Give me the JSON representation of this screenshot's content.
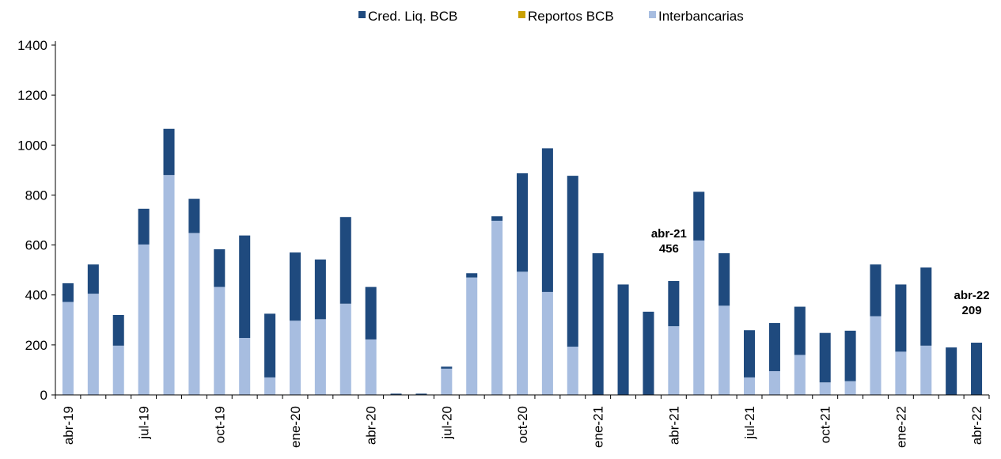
{
  "chart_data": {
    "type": "stacked_bar",
    "categories": [
      "abr-19",
      null,
      null,
      "jul-19",
      null,
      null,
      "oct-19",
      null,
      null,
      "ene-20",
      null,
      null,
      "abr-20",
      null,
      null,
      "jul-20",
      null,
      null,
      "oct-20",
      null,
      null,
      "ene-21",
      null,
      null,
      "abr-21",
      null,
      null,
      "jul-21",
      null,
      null,
      "oct-21",
      null,
      null,
      "ene-22",
      null,
      null,
      "abr-22"
    ],
    "series": [
      {
        "name": "Interbancarias",
        "color": "#a7bde0",
        "values": [
          372,
          405,
          197,
          602,
          880,
          648,
          432,
          228,
          70,
          297,
          303,
          365,
          222,
          0,
          0,
          105,
          470,
          697,
          493,
          412,
          193,
          0,
          0,
          0,
          275,
          618,
          357,
          70,
          95,
          160,
          50,
          55,
          315,
          173,
          197,
          0,
          0
        ]
      },
      {
        "name": "Reportos BCB",
        "color": "#c9a000",
        "values": [
          0,
          0,
          0,
          0,
          0,
          0,
          0,
          0,
          0,
          0,
          0,
          0,
          0,
          0,
          0,
          0,
          0,
          0,
          0,
          0,
          0,
          0,
          0,
          0,
          0,
          0,
          0,
          0,
          0,
          0,
          0,
          0,
          0,
          0,
          0,
          0,
          0
        ]
      },
      {
        "name": "Cred. Liq. BCB",
        "color": "#1f4a7e",
        "values": [
          75,
          117,
          123,
          143,
          185,
          137,
          151,
          410,
          255,
          273,
          239,
          347,
          210,
          5,
          5,
          8,
          17,
          18,
          394,
          575,
          684,
          567,
          442,
          333,
          181,
          195,
          210,
          189,
          193,
          193,
          198,
          202,
          207,
          269,
          313,
          190,
          209
        ]
      }
    ],
    "legend_order": [
      2,
      1,
      0
    ],
    "annotations": [
      {
        "label": "abr-21",
        "value": 456
      },
      {
        "label": "abr-22",
        "value": 209
      }
    ],
    "ylim": [
      0,
      1400
    ],
    "yticks": [
      0,
      200,
      400,
      600,
      800,
      1000,
      1200,
      1400
    ]
  }
}
